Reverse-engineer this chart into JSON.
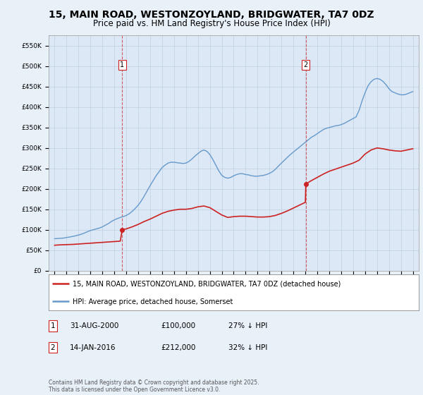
{
  "title": "15, MAIN ROAD, WESTONZOYLAND, BRIDGWATER, TA7 0DZ",
  "subtitle": "Price paid vs. HM Land Registry's House Price Index (HPI)",
  "title_fontsize": 10,
  "subtitle_fontsize": 8.5,
  "background_color": "#e8f0f8",
  "plot_bg_color": "#dce8f5",
  "ylim": [
    0,
    575000
  ],
  "yticks": [
    0,
    50000,
    100000,
    150000,
    200000,
    250000,
    300000,
    350000,
    400000,
    450000,
    500000,
    550000
  ],
  "ytick_labels": [
    "£0",
    "£50K",
    "£100K",
    "£150K",
    "£200K",
    "£250K",
    "£300K",
    "£350K",
    "£400K",
    "£450K",
    "£500K",
    "£550K"
  ],
  "xlim_start": 1994.5,
  "xlim_end": 2025.5,
  "sale1_year": 2000.66,
  "sale1_price": 100000,
  "sale1_label": "1",
  "sale1_date": "31-AUG-2000",
  "sale1_price_str": "£100,000",
  "sale1_pct": "27% ↓ HPI",
  "sale2_year": 2016.04,
  "sale2_price": 212000,
  "sale2_label": "2",
  "sale2_date": "14-JAN-2016",
  "sale2_price_str": "£212,000",
  "sale2_pct": "32% ↓ HPI",
  "hpi_color": "#6699cc",
  "price_color": "#cc2222",
  "legend_label_price": "15, MAIN ROAD, WESTONZOYLAND, BRIDGWATER, TA7 0DZ (detached house)",
  "legend_label_hpi": "HPI: Average price, detached house, Somerset",
  "footer": "Contains HM Land Registry data © Crown copyright and database right 2025.\nThis data is licensed under the Open Government Licence v3.0.",
  "hpi_years": [
    1995.0,
    1995.25,
    1995.5,
    1995.75,
    1996.0,
    1996.25,
    1996.5,
    1996.75,
    1997.0,
    1997.25,
    1997.5,
    1997.75,
    1998.0,
    1998.25,
    1998.5,
    1998.75,
    1999.0,
    1999.25,
    1999.5,
    1999.75,
    2000.0,
    2000.25,
    2000.5,
    2000.75,
    2001.0,
    2001.25,
    2001.5,
    2001.75,
    2002.0,
    2002.25,
    2002.5,
    2002.75,
    2003.0,
    2003.25,
    2003.5,
    2003.75,
    2004.0,
    2004.25,
    2004.5,
    2004.75,
    2005.0,
    2005.25,
    2005.5,
    2005.75,
    2006.0,
    2006.25,
    2006.5,
    2006.75,
    2007.0,
    2007.25,
    2007.5,
    2007.75,
    2008.0,
    2008.25,
    2008.5,
    2008.75,
    2009.0,
    2009.25,
    2009.5,
    2009.75,
    2010.0,
    2010.25,
    2010.5,
    2010.75,
    2011.0,
    2011.25,
    2011.5,
    2011.75,
    2012.0,
    2012.25,
    2012.5,
    2012.75,
    2013.0,
    2013.25,
    2013.5,
    2013.75,
    2014.0,
    2014.25,
    2014.5,
    2014.75,
    2015.0,
    2015.25,
    2015.5,
    2015.75,
    2016.0,
    2016.25,
    2016.5,
    2016.75,
    2017.0,
    2017.25,
    2017.5,
    2017.75,
    2018.0,
    2018.25,
    2018.5,
    2018.75,
    2019.0,
    2019.25,
    2019.5,
    2019.75,
    2020.0,
    2020.25,
    2020.5,
    2020.75,
    2021.0,
    2021.25,
    2021.5,
    2021.75,
    2022.0,
    2022.25,
    2022.5,
    2022.75,
    2023.0,
    2023.25,
    2023.5,
    2023.75,
    2024.0,
    2024.25,
    2024.5,
    2024.75,
    2025.0
  ],
  "hpi_values": [
    78000,
    78500,
    79000,
    79500,
    81000,
    82000,
    83500,
    85000,
    87000,
    89000,
    92000,
    95000,
    98000,
    100000,
    102000,
    104000,
    107000,
    111000,
    115000,
    120000,
    124000,
    127000,
    130000,
    132000,
    135000,
    139000,
    145000,
    152000,
    160000,
    170000,
    182000,
    195000,
    208000,
    220000,
    232000,
    242000,
    252000,
    258000,
    263000,
    265000,
    265000,
    264000,
    263000,
    262000,
    263000,
    267000,
    273000,
    280000,
    286000,
    292000,
    295000,
    292000,
    284000,
    272000,
    258000,
    244000,
    233000,
    228000,
    226000,
    228000,
    232000,
    235000,
    237000,
    237000,
    235000,
    234000,
    232000,
    231000,
    231000,
    232000,
    233000,
    235000,
    238000,
    242000,
    248000,
    256000,
    263000,
    270000,
    277000,
    284000,
    290000,
    296000,
    302000,
    308000,
    314000,
    320000,
    326000,
    330000,
    335000,
    340000,
    345000,
    348000,
    350000,
    352000,
    354000,
    355000,
    357000,
    360000,
    364000,
    368000,
    372000,
    376000,
    392000,
    415000,
    435000,
    452000,
    462000,
    468000,
    470000,
    468000,
    463000,
    455000,
    445000,
    438000,
    435000,
    432000,
    430000,
    430000,
    432000,
    435000,
    438000
  ],
  "price_years": [
    1995.0,
    1995.5,
    1996.0,
    1996.5,
    1997.0,
    1997.5,
    1998.0,
    1998.5,
    1999.0,
    1999.5,
    2000.0,
    2000.5,
    2000.66,
    2001.0,
    2001.5,
    2002.0,
    2002.5,
    2003.0,
    2003.5,
    2004.0,
    2004.5,
    2005.0,
    2005.5,
    2006.0,
    2006.5,
    2007.0,
    2007.5,
    2008.0,
    2008.5,
    2009.0,
    2009.5,
    2010.0,
    2010.5,
    2011.0,
    2011.5,
    2012.0,
    2012.5,
    2013.0,
    2013.5,
    2014.0,
    2014.5,
    2015.0,
    2015.5,
    2016.0,
    2016.04,
    2016.5,
    2017.0,
    2017.5,
    2018.0,
    2018.5,
    2019.0,
    2019.5,
    2020.0,
    2020.5,
    2021.0,
    2021.5,
    2022.0,
    2022.5,
    2023.0,
    2023.5,
    2024.0,
    2024.5,
    2025.0
  ],
  "price_values": [
    62000,
    63000,
    63500,
    64000,
    65000,
    66000,
    67000,
    68000,
    69000,
    70000,
    71000,
    72000,
    100000,
    102000,
    107000,
    113000,
    120000,
    126000,
    133000,
    140000,
    145000,
    148000,
    150000,
    150000,
    152000,
    156000,
    158000,
    154000,
    145000,
    136000,
    130000,
    132000,
    133000,
    133000,
    132000,
    131000,
    131000,
    132000,
    135000,
    140000,
    146000,
    153000,
    160000,
    167000,
    212000,
    220000,
    228000,
    236000,
    243000,
    248000,
    253000,
    258000,
    263000,
    270000,
    285000,
    295000,
    300000,
    298000,
    295000,
    293000,
    292000,
    295000,
    298000
  ]
}
